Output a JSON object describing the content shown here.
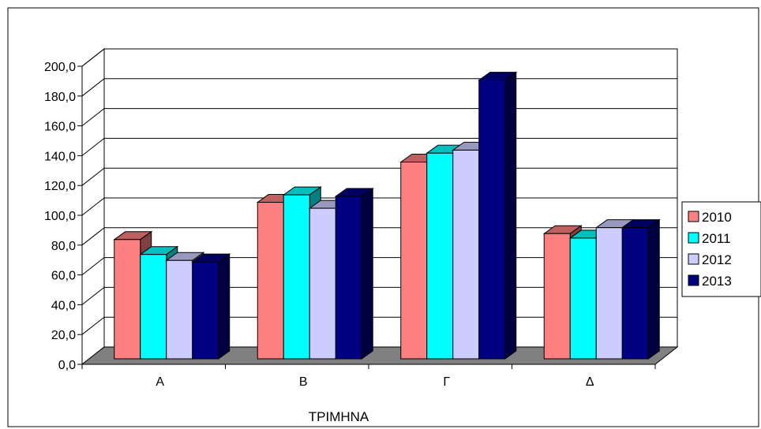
{
  "chart_data": {
    "type": "bar",
    "title": "",
    "xlabel": "ΤΡΙΜΗΝΑ",
    "ylabel": "",
    "categories": [
      "Α",
      "Β",
      "Γ",
      "Δ"
    ],
    "ylim": [
      0,
      200
    ],
    "yticks": [
      "0,0",
      "20,0",
      "40,0",
      "60,0",
      "80,0",
      "100,0",
      "120,0",
      "140,0",
      "160,0",
      "180,0",
      "200,0"
    ],
    "grid": true,
    "three_d": true,
    "legend_position": "right",
    "series": [
      {
        "name": "2010",
        "color": "#FF8080",
        "values": [
          80,
          105,
          132,
          84
        ]
      },
      {
        "name": "2011",
        "color": "#00FFFF",
        "values": [
          70,
          110,
          138,
          81
        ]
      },
      {
        "name": "2012",
        "color": "#CCCCFF",
        "values": [
          66,
          101,
          140,
          88
        ]
      },
      {
        "name": "2013",
        "color": "#000080",
        "values": [
          65,
          109,
          187,
          88
        ]
      }
    ]
  }
}
